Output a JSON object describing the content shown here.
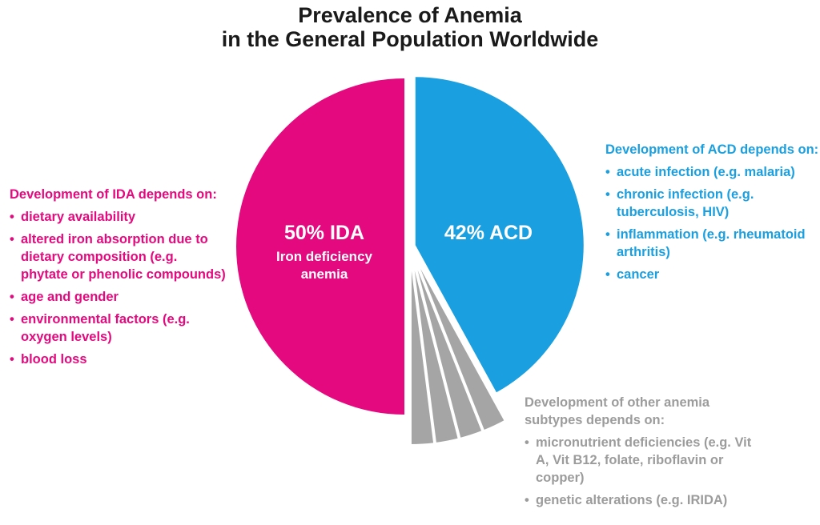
{
  "chart_data": {
    "type": "pie",
    "title_lines": [
      "Prevalence of Anemia",
      "in the General Population Worldwide"
    ],
    "slices": [
      {
        "label": "50% IDA",
        "sublabel": "Iron deficiency anemia",
        "value": 50,
        "color": "#e4097e"
      },
      {
        "label": "42% ACD",
        "value": 42,
        "color": "#1a9fe0"
      },
      {
        "label": "",
        "value": 2,
        "color": "#a5a5a5"
      },
      {
        "label": "",
        "value": 2,
        "color": "#a5a5a5"
      },
      {
        "label": "",
        "value": 2,
        "color": "#a5a5a5"
      },
      {
        "label": "",
        "value": 2,
        "color": "#a5a5a5"
      }
    ]
  },
  "ida_panel": {
    "heading": "Development of IDA depends on:",
    "items": [
      "dietary availability",
      "altered iron absorption due to dietary composition (e.g. phytate or phenolic compounds)",
      "age and gender",
      "environmental factors (e.g. oxygen levels)",
      "blood loss"
    ]
  },
  "acd_panel": {
    "heading": "Development of ACD depends on:",
    "items": [
      "acute infection (e.g. malaria)",
      "chronic infection (e.g. tuberculosis, HIV)",
      "inflammation (e.g. rheumatoid arthritis)",
      "cancer"
    ]
  },
  "other_panel": {
    "heading": "Development of other anemia subtypes depends on:",
    "items": [
      "micronutrient deficiencies (e.g. Vit A, Vit B12, folate, riboflavin or copper)",
      "genetic alterations (e.g. IRIDA)"
    ]
  }
}
